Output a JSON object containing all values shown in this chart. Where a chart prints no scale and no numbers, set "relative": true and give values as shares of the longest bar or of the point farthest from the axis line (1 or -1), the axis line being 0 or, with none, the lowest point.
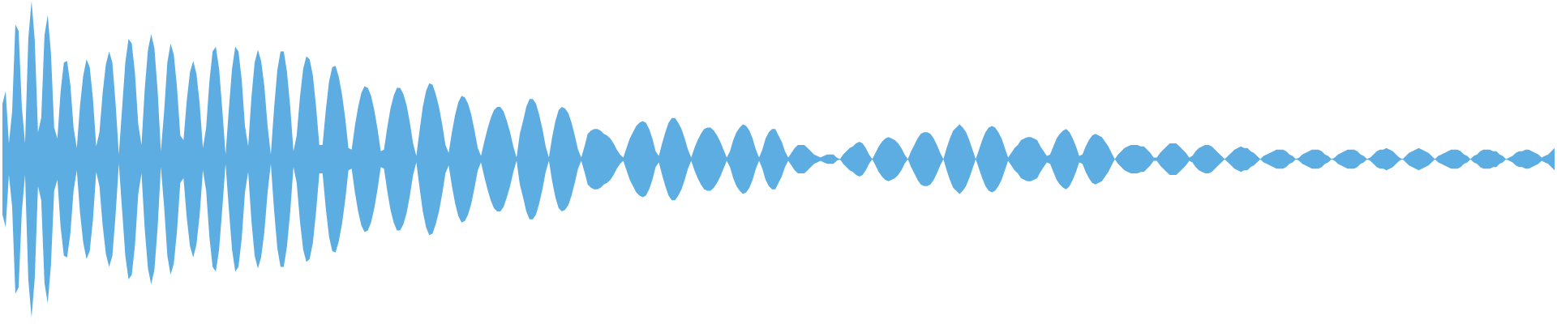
{
  "chart_data": {
    "type": "area",
    "relative": true,
    "categories": [
      null,
      null,
      null,
      null,
      null,
      null,
      null,
      null,
      null,
      null,
      null,
      null,
      null,
      null,
      null,
      null,
      null,
      null,
      null,
      null,
      null,
      null,
      null,
      null,
      null,
      null,
      null,
      null,
      null,
      null,
      null,
      null,
      null,
      null,
      null,
      null,
      null,
      null,
      null,
      null,
      null,
      null,
      null,
      null,
      null,
      null,
      null,
      null,
      null,
      null,
      null,
      null,
      null,
      null,
      null,
      null,
      null,
      null,
      null,
      null,
      null,
      null,
      null,
      null,
      null,
      null,
      null,
      null,
      null,
      null,
      null,
      null,
      null,
      null,
      null,
      null,
      null,
      null,
      null,
      null,
      null,
      null,
      null,
      null,
      null,
      null,
      null,
      null,
      null,
      null,
      null,
      null,
      null,
      null,
      null,
      null,
      null,
      null,
      null,
      null,
      null,
      null,
      null,
      null,
      null,
      null,
      null,
      null,
      null,
      null,
      null,
      null,
      null,
      null,
      null,
      null,
      null,
      null,
      null,
      null,
      null,
      null,
      null,
      null,
      null,
      null,
      null,
      null,
      null,
      null,
      null,
      null,
      null,
      null,
      null,
      null,
      null,
      null,
      null,
      null,
      null,
      null,
      null,
      null,
      null,
      null,
      null,
      null,
      null,
      null,
      null,
      null,
      null,
      null,
      null,
      null,
      null,
      null,
      null,
      null,
      null,
      null,
      null,
      null,
      null,
      null,
      null,
      null,
      null,
      null,
      null,
      null,
      null,
      null,
      null,
      null,
      null,
      null,
      null,
      null,
      null,
      null,
      null,
      null,
      null,
      null,
      null,
      null,
      null,
      null,
      null,
      null,
      null,
      null,
      null,
      null,
      null,
      null,
      null,
      null,
      null,
      null,
      null,
      null,
      null,
      null,
      null,
      null,
      null,
      null,
      null,
      null,
      null,
      null,
      null,
      null,
      null,
      null,
      null,
      null,
      null,
      null,
      null,
      null,
      null,
      null,
      null,
      null,
      null,
      null,
      null,
      null,
      null,
      null,
      null,
      null,
      null,
      null,
      null,
      null,
      null,
      null,
      null,
      null,
      null,
      null,
      null,
      null,
      null,
      null,
      null,
      null,
      null,
      null,
      null,
      null,
      null,
      null,
      null,
      null,
      null,
      null,
      null,
      null,
      null,
      null,
      null,
      null,
      null,
      null,
      null,
      null,
      null,
      null,
      null,
      null,
      null,
      null,
      null,
      null,
      null,
      null,
      null,
      null,
      null,
      null,
      null,
      null,
      null,
      null,
      null,
      null,
      null,
      null,
      null,
      null,
      null,
      null,
      null,
      null,
      null,
      null,
      null,
      null,
      null,
      null,
      null,
      null,
      null,
      null,
      null,
      null,
      null,
      null,
      null,
      null,
      null,
      null,
      null,
      null,
      null,
      null,
      null,
      null,
      null,
      null,
      null,
      null,
      null,
      null,
      null,
      null,
      null,
      null,
      null,
      null,
      null,
      null,
      null,
      null,
      null,
      null,
      null,
      null,
      null,
      null,
      null,
      null,
      null,
      null,
      null,
      null,
      null,
      null,
      null,
      null,
      null,
      null,
      null,
      null,
      null,
      null,
      null,
      null,
      null,
      null,
      null,
      null,
      null,
      null,
      null,
      null,
      null,
      null,
      null,
      null,
      null,
      null,
      null,
      null,
      null,
      null,
      null,
      null,
      null,
      null,
      null,
      null,
      null,
      null,
      null,
      null,
      null,
      null,
      null,
      null,
      null,
      null,
      null,
      null,
      null,
      null,
      null,
      null,
      null,
      null,
      null,
      null,
      null,
      null,
      null,
      null,
      null,
      null,
      null,
      null,
      null,
      null,
      null,
      null,
      null,
      null,
      null,
      null,
      null,
      null,
      null,
      null,
      null,
      null,
      null,
      null,
      null,
      null,
      null,
      null,
      null,
      null,
      null,
      null,
      null,
      null,
      null,
      null,
      null,
      null,
      null,
      null,
      null,
      null,
      null,
      null,
      null,
      null,
      null,
      null,
      null,
      null,
      null,
      null,
      null,
      null,
      null,
      null,
      null,
      null,
      null,
      null,
      null,
      null,
      null,
      null,
      null,
      null,
      null,
      null,
      null,
      null,
      null,
      null,
      null
    ],
    "series": [
      {
        "color": "#5dade2",
        "values": [
          0.35,
          0.43,
          0.1,
          0.3,
          0.85,
          0.81,
          0.33,
          0.1,
          0.76,
          1.0,
          0.75,
          0.17,
          0.26,
          0.78,
          0.91,
          0.67,
          0.2,
          0.13,
          0.43,
          0.61,
          0.62,
          0.47,
          0.2,
          0.07,
          0.34,
          0.53,
          0.63,
          0.58,
          0.38,
          0.08,
          0.17,
          0.42,
          0.6,
          0.68,
          0.61,
          0.35,
          0.03,
          0.32,
          0.61,
          0.76,
          0.73,
          0.54,
          0.22,
          0.09,
          0.44,
          0.69,
          0.79,
          0.7,
          0.43,
          0.05,
          0.3,
          0.61,
          0.73,
          0.66,
          0.45,
          0.15,
          0.12,
          0.37,
          0.55,
          0.62,
          0.54,
          0.35,
          0.07,
          0.2,
          0.49,
          0.68,
          0.71,
          0.57,
          0.31,
          0.03,
          0.31,
          0.57,
          0.71,
          0.68,
          0.5,
          0.21,
          0.08,
          0.39,
          0.61,
          0.69,
          0.62,
          0.46,
          0.21,
          0.03,
          0.32,
          0.56,
          0.68,
          0.68,
          0.55,
          0.33,
          0.05,
          0.15,
          0.39,
          0.57,
          0.65,
          0.63,
          0.53,
          0.33,
          0.09,
          0.09,
          0.31,
          0.49,
          0.58,
          0.59,
          0.52,
          0.41,
          0.26,
          0.07,
          0.06,
          0.21,
          0.33,
          0.42,
          0.46,
          0.45,
          0.4,
          0.31,
          0.19,
          0.05,
          0.06,
          0.2,
          0.32,
          0.4,
          0.45,
          0.45,
          0.41,
          0.34,
          0.23,
          0.1,
          0.02,
          0.18,
          0.33,
          0.43,
          0.48,
          0.47,
          0.41,
          0.33,
          0.22,
          0.09,
          0.04,
          0.17,
          0.28,
          0.36,
          0.4,
          0.39,
          0.35,
          0.28,
          0.18,
          0.07,
          0.02,
          0.11,
          0.19,
          0.26,
          0.31,
          0.33,
          0.33,
          0.3,
          0.24,
          0.17,
          0.08,
          0.01,
          0.16,
          0.24,
          0.33,
          0.38,
          0.38,
          0.35,
          0.28,
          0.19,
          0.08,
          0.01,
          0.14,
          0.24,
          0.31,
          0.33,
          0.32,
          0.29,
          0.23,
          0.15,
          0.06,
          0.01,
          0.08,
          0.16,
          0.18,
          0.19,
          0.19,
          0.18,
          0.16,
          0.15,
          0.13,
          0.1,
          0.06,
          0.03,
          0.01,
          0.07,
          0.13,
          0.17,
          0.21,
          0.23,
          0.24,
          0.23,
          0.19,
          0.13,
          0.05,
          0.02,
          0.1,
          0.17,
          0.23,
          0.26,
          0.26,
          0.23,
          0.19,
          0.13,
          0.06,
          0.01,
          0.07,
          0.12,
          0.16,
          0.19,
          0.2,
          0.2,
          0.18,
          0.15,
          0.11,
          0.06,
          0.01,
          0.05,
          0.12,
          0.17,
          0.2,
          0.22,
          0.21,
          0.18,
          0.13,
          0.06,
          0.01,
          0.06,
          0.13,
          0.17,
          0.19,
          0.19,
          0.15,
          0.11,
          0.05,
          0.01,
          0.04,
          0.07,
          0.09,
          0.09,
          0.09,
          0.07,
          0.05,
          0.03,
          0.02,
          0.01,
          0.02,
          0.03,
          0.03,
          0.03,
          0.01,
          0.0,
          0.03,
          0.05,
          0.07,
          0.08,
          0.1,
          0.11,
          0.1,
          0.07,
          0.03,
          0.0,
          0.04,
          0.08,
          0.11,
          0.13,
          0.14,
          0.13,
          0.12,
          0.1,
          0.07,
          0.03,
          0.0,
          0.05,
          0.09,
          0.13,
          0.16,
          0.17,
          0.17,
          0.16,
          0.13,
          0.09,
          0.04,
          0.0,
          0.07,
          0.13,
          0.18,
          0.2,
          0.22,
          0.2,
          0.17,
          0.12,
          0.06,
          0.0,
          0.06,
          0.12,
          0.17,
          0.2,
          0.21,
          0.2,
          0.17,
          0.13,
          0.07,
          0.01,
          0.04,
          0.07,
          0.09,
          0.12,
          0.13,
          0.14,
          0.14,
          0.13,
          0.12,
          0.08,
          0.05,
          0.02,
          0.03,
          0.08,
          0.13,
          0.16,
          0.18,
          0.19,
          0.17,
          0.13,
          0.08,
          0.02,
          0.03,
          0.08,
          0.12,
          0.15,
          0.16,
          0.15,
          0.14,
          0.11,
          0.08,
          0.04,
          0.0,
          0.03,
          0.05,
          0.07,
          0.08,
          0.09,
          0.09,
          0.09,
          0.08,
          0.08,
          0.06,
          0.04,
          0.01,
          0.01,
          0.04,
          0.06,
          0.08,
          0.1,
          0.1,
          0.1,
          0.08,
          0.06,
          0.04,
          0.01,
          0.02,
          0.05,
          0.07,
          0.08,
          0.09,
          0.09,
          0.08,
          0.06,
          0.04,
          0.02,
          0.0,
          0.02,
          0.04,
          0.06,
          0.07,
          0.08,
          0.07,
          0.07,
          0.05,
          0.04,
          0.02,
          0.0,
          0.02,
          0.03,
          0.04,
          0.05,
          0.06,
          0.06,
          0.06,
          0.05,
          0.03,
          0.02,
          0.0,
          0.01,
          0.03,
          0.04,
          0.05,
          0.06,
          0.06,
          0.06,
          0.05,
          0.03,
          0.02,
          0.0,
          0.01,
          0.03,
          0.04,
          0.05,
          0.06,
          0.06,
          0.06,
          0.05,
          0.03,
          0.02,
          0.0,
          0.01,
          0.03,
          0.05,
          0.06,
          0.06,
          0.07,
          0.06,
          0.05,
          0.03,
          0.01,
          0.0,
          0.02,
          0.04,
          0.05,
          0.06,
          0.07,
          0.06,
          0.05,
          0.04,
          0.02,
          0.0,
          0.02,
          0.03,
          0.04,
          0.05,
          0.06,
          0.06,
          0.06,
          0.05,
          0.03,
          0.02,
          0.0,
          0.02,
          0.03,
          0.05,
          0.06,
          0.06,
          0.06,
          0.05,
          0.05,
          0.03,
          0.02,
          0.0,
          0.01,
          0.02,
          0.04,
          0.05,
          0.05,
          0.06,
          0.06,
          0.05,
          0.04,
          0.03,
          0.01,
          0.02,
          0.03,
          0.05,
          0.07
        ]
      },
      {
        "color": "#5caee2",
        "values": [
          -0.35,
          -0.43,
          -0.1,
          -0.3,
          -0.85,
          -0.81,
          -0.33,
          -0.1,
          -0.76,
          -1.0,
          -0.75,
          -0.17,
          -0.26,
          -0.78,
          -0.91,
          -0.67,
          -0.2,
          -0.13,
          -0.43,
          -0.61,
          -0.62,
          -0.47,
          -0.2,
          -0.07,
          -0.34,
          -0.53,
          -0.63,
          -0.58,
          -0.38,
          -0.08,
          -0.17,
          -0.42,
          -0.6,
          -0.68,
          -0.61,
          -0.35,
          -0.03,
          -0.32,
          -0.61,
          -0.76,
          -0.73,
          -0.54,
          -0.22,
          -0.09,
          -0.44,
          -0.69,
          -0.79,
          -0.7,
          -0.43,
          -0.05,
          -0.3,
          -0.61,
          -0.73,
          -0.66,
          -0.45,
          -0.15,
          -0.12,
          -0.37,
          -0.55,
          -0.62,
          -0.54,
          -0.35,
          -0.07,
          -0.2,
          -0.49,
          -0.68,
          -0.71,
          -0.57,
          -0.31,
          -0.03,
          -0.31,
          -0.57,
          -0.71,
          -0.68,
          -0.5,
          -0.21,
          -0.08,
          -0.39,
          -0.61,
          -0.69,
          -0.62,
          -0.46,
          -0.21,
          -0.03,
          -0.32,
          -0.56,
          -0.68,
          -0.68,
          -0.55,
          -0.33,
          -0.05,
          -0.15,
          -0.39,
          -0.57,
          -0.65,
          -0.63,
          -0.53,
          -0.33,
          -0.09,
          -0.09,
          -0.31,
          -0.49,
          -0.58,
          -0.59,
          -0.52,
          -0.41,
          -0.26,
          -0.07,
          -0.06,
          -0.21,
          -0.33,
          -0.42,
          -0.46,
          -0.45,
          -0.4,
          -0.31,
          -0.19,
          -0.05,
          -0.06,
          -0.2,
          -0.32,
          -0.4,
          -0.45,
          -0.45,
          -0.41,
          -0.34,
          -0.23,
          -0.1,
          -0.02,
          -0.18,
          -0.33,
          -0.43,
          -0.48,
          -0.47,
          -0.41,
          -0.33,
          -0.22,
          -0.09,
          -0.04,
          -0.17,
          -0.28,
          -0.36,
          -0.4,
          -0.39,
          -0.35,
          -0.28,
          -0.18,
          -0.07,
          -0.02,
          -0.11,
          -0.19,
          -0.26,
          -0.31,
          -0.33,
          -0.33,
          -0.3,
          -0.24,
          -0.17,
          -0.08,
          -0.01,
          -0.16,
          -0.24,
          -0.33,
          -0.38,
          -0.38,
          -0.35,
          -0.28,
          -0.19,
          -0.08,
          -0.01,
          -0.14,
          -0.24,
          -0.31,
          -0.33,
          -0.32,
          -0.29,
          -0.23,
          -0.15,
          -0.06,
          -0.01,
          -0.08,
          -0.16,
          -0.18,
          -0.19,
          -0.19,
          -0.18,
          -0.16,
          -0.15,
          -0.13,
          -0.1,
          -0.06,
          -0.03,
          -0.01,
          -0.07,
          -0.13,
          -0.17,
          -0.21,
          -0.23,
          -0.24,
          -0.23,
          -0.19,
          -0.13,
          -0.05,
          -0.02,
          -0.1,
          -0.17,
          -0.23,
          -0.26,
          -0.26,
          -0.23,
          -0.19,
          -0.13,
          -0.06,
          -0.01,
          -0.07,
          -0.12,
          -0.16,
          -0.19,
          -0.2,
          -0.2,
          -0.18,
          -0.15,
          -0.11,
          -0.06,
          -0.01,
          -0.05,
          -0.12,
          -0.17,
          -0.2,
          -0.22,
          -0.21,
          -0.18,
          -0.13,
          -0.06,
          -0.01,
          -0.06,
          -0.13,
          -0.17,
          -0.19,
          -0.19,
          -0.15,
          -0.11,
          -0.05,
          -0.01,
          -0.04,
          -0.07,
          -0.09,
          -0.09,
          -0.09,
          -0.07,
          -0.05,
          -0.03,
          -0.02,
          -0.01,
          -0.02,
          -0.03,
          -0.03,
          -0.03,
          -0.01,
          0,
          -0.03,
          -0.05,
          -0.07,
          -0.08,
          -0.1,
          -0.11,
          -0.1,
          -0.07,
          -0.03,
          0,
          -0.04,
          -0.08,
          -0.11,
          -0.13,
          -0.14,
          -0.13,
          -0.12,
          -0.1,
          -0.07,
          -0.03,
          0,
          -0.05,
          -0.09,
          -0.13,
          -0.16,
          -0.17,
          -0.17,
          -0.16,
          -0.13,
          -0.09,
          -0.04,
          0,
          -0.07,
          -0.13,
          -0.18,
          -0.2,
          -0.22,
          -0.2,
          -0.17,
          -0.12,
          -0.06,
          0,
          -0.06,
          -0.12,
          -0.17,
          -0.2,
          -0.21,
          -0.2,
          -0.17,
          -0.13,
          -0.07,
          -0.01,
          -0.04,
          -0.07,
          -0.09,
          -0.12,
          -0.13,
          -0.14,
          -0.14,
          -0.13,
          -0.12,
          -0.08,
          -0.05,
          -0.02,
          -0.03,
          -0.08,
          -0.13,
          -0.16,
          -0.18,
          -0.19,
          -0.17,
          -0.13,
          -0.08,
          -0.02,
          -0.03,
          -0.08,
          -0.12,
          -0.15,
          -0.16,
          -0.15,
          -0.14,
          -0.11,
          -0.08,
          -0.04,
          0,
          -0.03,
          -0.05,
          -0.07,
          -0.08,
          -0.09,
          -0.09,
          -0.09,
          -0.08,
          -0.08,
          -0.06,
          -0.04,
          -0.01,
          -0.01,
          -0.04,
          -0.06,
          -0.08,
          -0.1,
          -0.1,
          -0.1,
          -0.08,
          -0.06,
          -0.04,
          -0.01,
          -0.02,
          -0.05,
          -0.07,
          -0.08,
          -0.09,
          -0.09,
          -0.08,
          -0.06,
          -0.04,
          -0.02,
          0,
          -0.02,
          -0.04,
          -0.06,
          -0.07,
          -0.08,
          -0.07,
          -0.07,
          -0.05,
          -0.04,
          -0.02,
          0,
          -0.02,
          -0.03,
          -0.04,
          -0.05,
          -0.06,
          -0.06,
          -0.06,
          -0.05,
          -0.03,
          -0.02,
          0,
          -0.01,
          -0.03,
          -0.04,
          -0.05,
          -0.06,
          -0.06,
          -0.06,
          -0.05,
          -0.03,
          -0.02,
          0,
          -0.01,
          -0.03,
          -0.04,
          -0.05,
          -0.06,
          -0.06,
          -0.06,
          -0.05,
          -0.03,
          -0.02,
          0,
          -0.01,
          -0.03,
          -0.05,
          -0.06,
          -0.06,
          -0.07,
          -0.06,
          -0.05,
          -0.03,
          -0.01,
          0,
          -0.02,
          -0.04,
          -0.05,
          -0.06,
          -0.07,
          -0.06,
          -0.05,
          -0.04,
          -0.02,
          0,
          -0.02,
          -0.03,
          -0.04,
          -0.05,
          -0.06,
          -0.06,
          -0.06,
          -0.05,
          -0.03,
          -0.02,
          0,
          -0.02,
          -0.03,
          -0.05,
          -0.06,
          -0.06,
          -0.06,
          -0.05,
          -0.05,
          -0.03,
          -0.02,
          0,
          -0.01,
          -0.02,
          -0.04,
          -0.05,
          -0.05,
          -0.06,
          -0.06,
          -0.05,
          -0.04,
          -0.03,
          -0.01,
          -0.02,
          -0.03,
          -0.05,
          -0.07
        ]
      }
    ],
    "ref_lines": [
      {
        "axis": "y",
        "value": 0,
        "color": "#5dade2"
      }
    ]
  }
}
